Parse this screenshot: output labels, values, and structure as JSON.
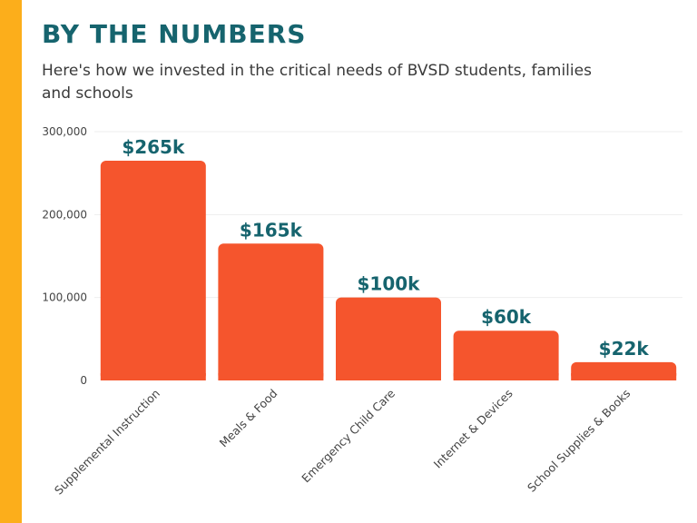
{
  "title": "BY THE NUMBERS",
  "subtitle": "Here's how we invested in the critical needs of BVSD students, families and schools",
  "colors": {
    "accent_bar": "#fcae1b",
    "title": "#16646e",
    "bar": "#f5552d",
    "data_label": "#16646e",
    "grid": "#eeeeee"
  },
  "chart_data": {
    "type": "bar",
    "categories": [
      "Supplemental Instruction",
      "Meals & Food",
      "Emergency Child Care",
      "Internet & Devices",
      "School Supplies & Books"
    ],
    "values": [
      265000,
      165000,
      100000,
      60000,
      22000
    ],
    "data_labels": [
      "$265k",
      "$165k",
      "$100k",
      "$60k",
      "$22k"
    ],
    "yticks": [
      0,
      100000,
      200000,
      300000
    ],
    "ytick_labels": [
      "0",
      "100,000",
      "200,000",
      "300,000"
    ],
    "ylim": [
      0,
      300000
    ],
    "grid": true,
    "legend": "none"
  }
}
